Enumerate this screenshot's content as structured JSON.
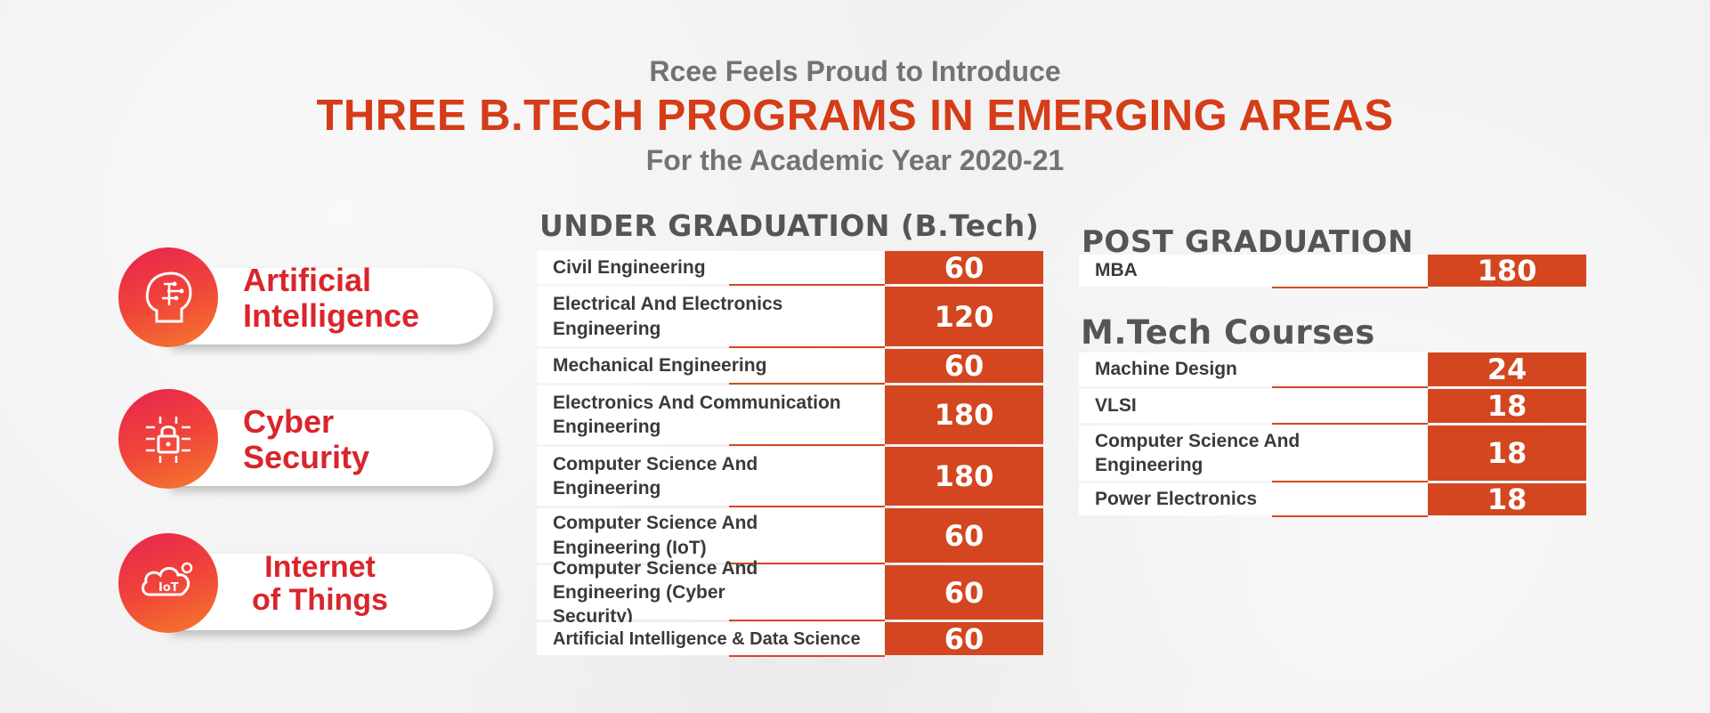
{
  "header": {
    "intro": "Rcee Feels Proud to Introduce",
    "title": "THREE B.TECH PROGRAMS IN EMERGING AREAS",
    "subtitle": "For the Academic Year 2020-21"
  },
  "programs": [
    {
      "line1": "Artificial",
      "line2": "Intelligence",
      "icon": "ai-head-icon"
    },
    {
      "line1": "Cyber",
      "line2": "Security",
      "icon": "lock-circuit-icon"
    },
    {
      "line1": "Internet",
      "line2": "of Things",
      "icon": "iot-cloud-icon"
    }
  ],
  "under_graduation": {
    "heading": "UNDER GRADUATION (B.Tech)",
    "rows": [
      {
        "name": "Civil Engineering",
        "seats": "60"
      },
      {
        "name": "Electrical And Electronics Engineering",
        "seats": "120"
      },
      {
        "name": "Mechanical Engineering",
        "seats": "60"
      },
      {
        "name": "Electronics And Communication Engineering",
        "seats": "180"
      },
      {
        "name": "Computer Science And Engineering",
        "seats": "180"
      },
      {
        "name": "Computer Science And Engineering (IoT)",
        "seats": "60"
      },
      {
        "name": "Computer Science And Engineering (Cyber Security)",
        "seats": "60"
      },
      {
        "name": "Artificial Intelligence & Data Science",
        "seats": "60"
      }
    ]
  },
  "post_graduation": {
    "heading": "POST GRADUATION",
    "rows": [
      {
        "name": "MBA",
        "seats": "180"
      }
    ]
  },
  "mtech": {
    "heading": "M.Tech Courses",
    "rows": [
      {
        "name": "Machine Design",
        "seats": "24"
      },
      {
        "name": "VLSI",
        "seats": "18"
      },
      {
        "name": "Computer Science And Engineering",
        "seats": "18"
      },
      {
        "name": "Power Electronics",
        "seats": "18"
      }
    ]
  },
  "colors": {
    "accent": "#d3461f",
    "title": "#d43d17",
    "program_text": "#d9252b",
    "gradient_start": "#e8244f",
    "gradient_end": "#f57b2c"
  }
}
